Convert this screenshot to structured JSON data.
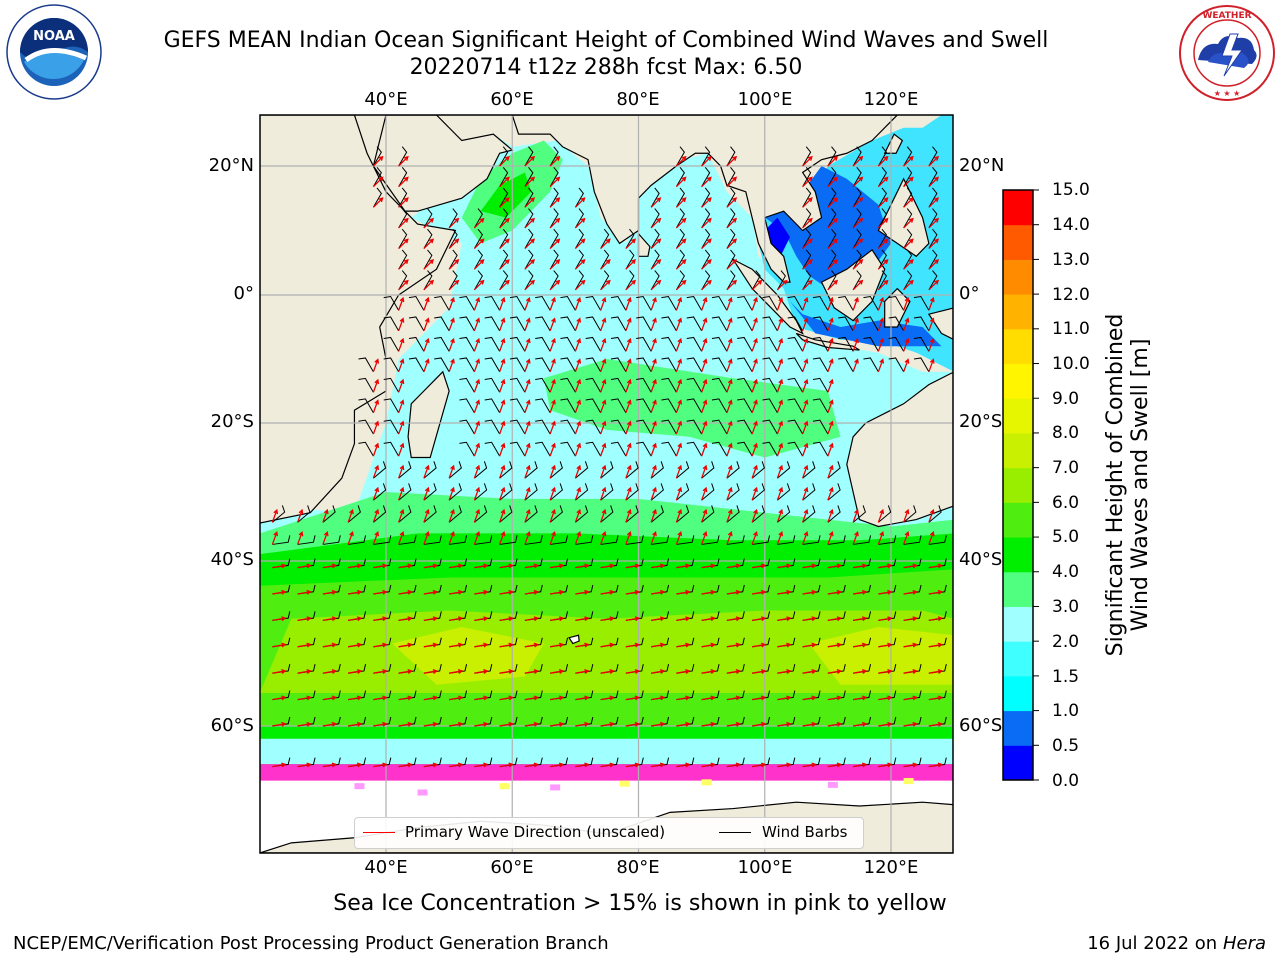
{
  "title": {
    "line1": "GEFS MEAN Indian Ocean Significant Height of Combined Wind Waves and Swell",
    "line2": "20220714 t12z 288h fcst   Max: 6.50"
  },
  "logos": {
    "noaa": {
      "text": "NOAA",
      "ring": "NATIONAL OCEANIC AND ATMOSPHERIC ADMINISTRATION · U.S. DEPARTMENT OF COMMERCE"
    },
    "nws": {
      "ring": "NATIONAL WEATHER SERVICE"
    }
  },
  "map": {
    "lon_ticks": [
      "40°E",
      "60°E",
      "80°E",
      "100°E",
      "120°E"
    ],
    "lat_ticks_left": [
      "20°N",
      "0°",
      "20°S",
      "40°S",
      "60°S"
    ],
    "lat_ticks_right": [
      "20°N",
      "0°",
      "20°S",
      "40°S",
      "60°S"
    ],
    "extent": {
      "lon_min": 20,
      "lon_max": 130,
      "lat_min": -70,
      "lat_max": 28
    },
    "gridlines": true,
    "land_color": "#efecdc",
    "legend": {
      "primary_wave": "Primary Wave Direction (unscaled)",
      "wind_barbs": "Wind Barbs",
      "primary_wave_color": "#ff0000",
      "wind_barbs_color": "#000000"
    }
  },
  "colorbar": {
    "label_line1": "Significant Height of Combined",
    "label_line2": "Wind Waves and Swell [m]",
    "ticks": [
      "15.0",
      "14.0",
      "13.0",
      "12.0",
      "11.0",
      "10.0",
      "9.0",
      "8.0",
      "7.0",
      "6.0",
      "5.0",
      "4.0",
      "3.0",
      "2.0",
      "1.5",
      "1.0",
      "0.5",
      "0.0"
    ],
    "levels": [
      0.0,
      0.5,
      1.0,
      1.5,
      2.0,
      3.0,
      4.0,
      5.0,
      6.0,
      7.0,
      8.0,
      9.0,
      10.0,
      11.0,
      12.0,
      13.0,
      14.0,
      15.0
    ],
    "colors": [
      "#0000ff",
      "#0a6cf5",
      "#00ffff",
      "#40ffff",
      "#a0ffff",
      "#50ff80",
      "#00ee00",
      "#50ee10",
      "#99ee00",
      "#c8f000",
      "#e6f500",
      "#fff500",
      "#ffdd00",
      "#ffb300",
      "#ff8c00",
      "#ff5a00",
      "#ff0000"
    ]
  },
  "caption": "Sea Ice Concentration > 15% is shown in pink to yellow",
  "credit": {
    "left": "NCEP/EMC/Verification Post Processing Product Generation Branch",
    "right_prefix": "16 Jul 2022 on ",
    "right_host": "Hera"
  }
}
